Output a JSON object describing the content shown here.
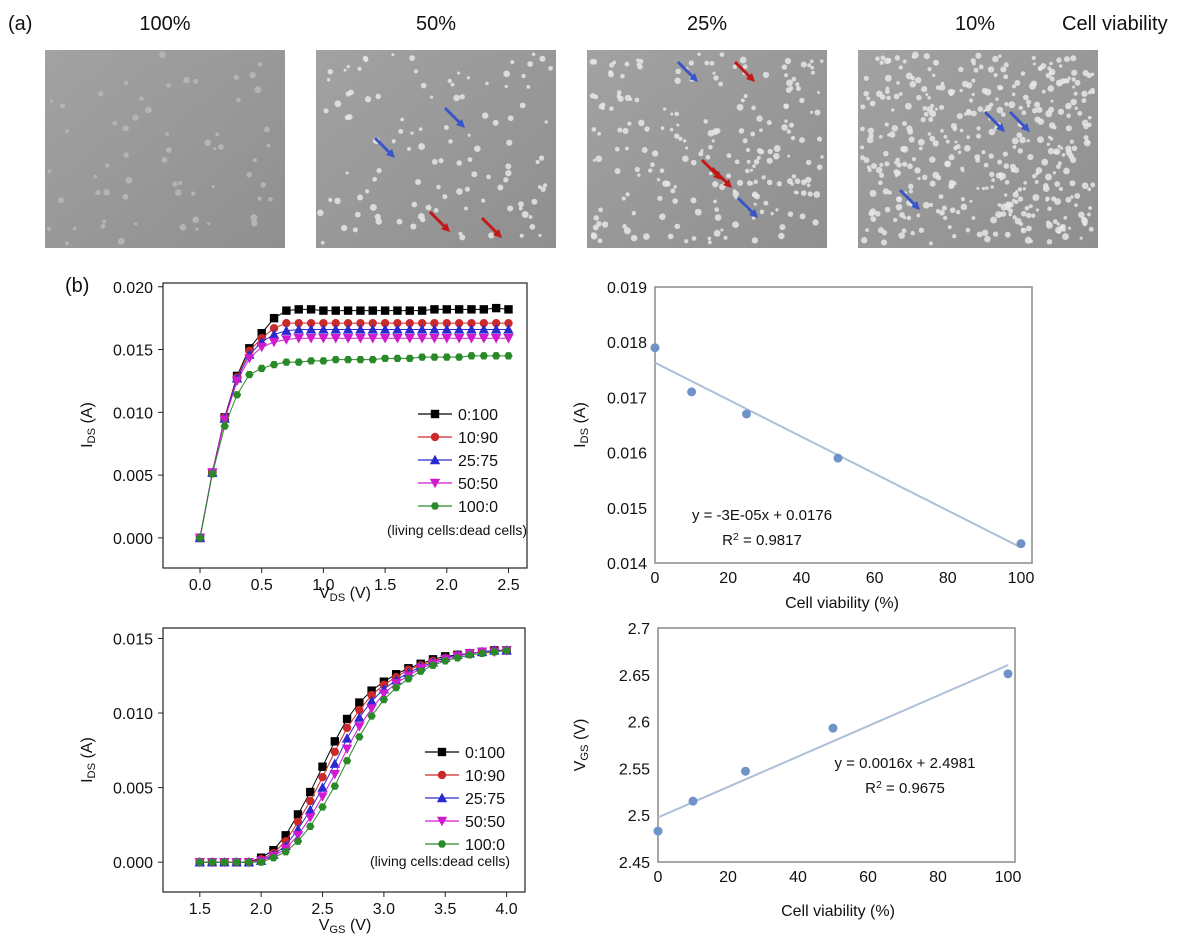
{
  "panel_a": {
    "label": "(a)",
    "viabilities": [
      "100%",
      "50%",
      "25%",
      "10%"
    ],
    "caption": "Cell viability"
  },
  "panel_b_label": "(b)",
  "chart_data": [
    {
      "type": "line",
      "xlabel": [
        "V",
        "DS",
        " (V)"
      ],
      "ylabel": [
        "I",
        "DS",
        " (A)"
      ],
      "x": [
        0,
        0.1,
        0.2,
        0.3,
        0.4,
        0.5,
        0.6,
        0.7,
        0.8,
        0.9,
        1.0,
        1.1,
        1.2,
        1.3,
        1.4,
        1.5,
        1.6,
        1.7,
        1.8,
        1.9,
        2.0,
        2.1,
        2.2,
        2.3,
        2.4,
        2.5
      ],
      "xlim": [
        -0.3,
        2.65
      ],
      "ylim": [
        -0.0024,
        0.0203
      ],
      "xticks": [
        {
          "value": 0,
          "label": "0.0"
        },
        0.5,
        {
          "value": 1,
          "label": "1.0"
        },
        1.5,
        {
          "value": 2,
          "label": "2.0"
        },
        2.5
      ],
      "yticks": [
        {
          "value": 0,
          "label": "0.000"
        },
        0.005,
        {
          "value": 0.01,
          "label": "0.010"
        },
        0.015,
        {
          "value": 0.02,
          "label": "0.020"
        }
      ],
      "legend": "center right",
      "annotation": "(living cells:dead cells)",
      "series": [
        {
          "name": "0:100",
          "color": "#000000",
          "marker": "square",
          "values": [
            0,
            0.0052,
            0.0096,
            0.0129,
            0.0151,
            0.0163,
            0.0175,
            0.0181,
            0.0182,
            0.0182,
            0.0181,
            0.0181,
            0.0181,
            0.0181,
            0.0181,
            0.0181,
            0.0181,
            0.0181,
            0.0181,
            0.0182,
            0.0182,
            0.0182,
            0.0182,
            0.0182,
            0.0183,
            0.0182
          ]
        },
        {
          "name": "10:90",
          "color": "#cc2a2a",
          "marker": "circle",
          "values": [
            0,
            0.0052,
            0.0096,
            0.0128,
            0.0149,
            0.0159,
            0.0167,
            0.0171,
            0.0171,
            0.0171,
            0.0171,
            0.0171,
            0.0171,
            0.0171,
            0.0171,
            0.0171,
            0.0171,
            0.0171,
            0.0171,
            0.0171,
            0.0171,
            0.0171,
            0.0171,
            0.0171,
            0.0171,
            0.0171
          ]
        },
        {
          "name": "25:75",
          "color": "#2a2ad0",
          "marker": "triangle-up",
          "values": [
            0,
            0.0052,
            0.0095,
            0.0127,
            0.0146,
            0.0156,
            0.0162,
            0.0165,
            0.0166,
            0.0166,
            0.0166,
            0.0166,
            0.0166,
            0.0166,
            0.0166,
            0.0166,
            0.0166,
            0.0166,
            0.0166,
            0.0166,
            0.0166,
            0.0166,
            0.0166,
            0.0166,
            0.0166,
            0.0166
          ]
        },
        {
          "name": "50:50",
          "color": "#d01ad0",
          "marker": "triangle-down",
          "values": [
            0,
            0.0052,
            0.0094,
            0.0125,
            0.0143,
            0.0152,
            0.0156,
            0.0158,
            0.0159,
            0.0159,
            0.0159,
            0.0159,
            0.0159,
            0.0159,
            0.0159,
            0.0159,
            0.0159,
            0.0159,
            0.0159,
            0.0159,
            0.0159,
            0.0159,
            0.0159,
            0.0159,
            0.0159,
            0.0159
          ]
        },
        {
          "name": "100:0",
          "color": "#2a8a2a",
          "marker": "hexagon",
          "values": [
            0,
            0.0051,
            0.0089,
            0.0114,
            0.013,
            0.0135,
            0.0138,
            0.014,
            0.014,
            0.0141,
            0.0141,
            0.0142,
            0.0142,
            0.0142,
            0.0142,
            0.0143,
            0.0143,
            0.0143,
            0.0144,
            0.0144,
            0.0144,
            0.0144,
            0.0145,
            0.0145,
            0.0145,
            0.0145
          ]
        }
      ]
    },
    {
      "type": "scatter",
      "xlabel": [
        "Cell viability (%)"
      ],
      "ylabel": [
        "I",
        "DS",
        " (A)"
      ],
      "x": [
        0,
        10,
        25,
        50,
        100
      ],
      "xlim": [
        0,
        103
      ],
      "ylim": [
        0.014,
        0.019
      ],
      "xticks": [
        0,
        20,
        40,
        60,
        80,
        100
      ],
      "yticks": [
        0.014,
        0.015,
        0.016,
        0.017,
        0.018,
        0.019
      ],
      "trendline": true,
      "annotations": [
        [
          "y = -3E-05x + 0.0176"
        ],
        [
          "R",
          "2",
          " = 0.9817"
        ]
      ],
      "series": [
        {
          "color": "#6f93c8",
          "values": [
            0.0179,
            0.0171,
            0.0167,
            0.0159,
            0.01435
          ]
        }
      ]
    },
    {
      "type": "line",
      "xlabel": [
        "V",
        "GS",
        " (V)"
      ],
      "ylabel": [
        "I",
        "DS",
        " (A)"
      ],
      "x": [
        1.5,
        1.6,
        1.7,
        1.8,
        1.9,
        2.0,
        2.1,
        2.2,
        2.3,
        2.4,
        2.5,
        2.6,
        2.7,
        2.8,
        2.9,
        3.0,
        3.1,
        3.2,
        3.3,
        3.4,
        3.5,
        3.6,
        3.7,
        3.8,
        3.9,
        4.0
      ],
      "xlim": [
        1.2,
        4.15
      ],
      "ylim": [
        -0.002,
        0.0157
      ],
      "xticks": [
        1.5,
        {
          "value": 2,
          "label": "2.0"
        },
        2.5,
        {
          "value": 3,
          "label": "3.0"
        },
        3.5,
        {
          "value": 4,
          "label": "4.0"
        }
      ],
      "yticks": [
        {
          "value": 0,
          "label": "0.000"
        },
        0.005,
        {
          "value": 0.01,
          "label": "0.010"
        },
        0.015
      ],
      "legend": "lower right",
      "annotation": "(living cells:dead cells)",
      "series": [
        {
          "name": "0:100",
          "color": "#000000",
          "marker": "square",
          "values": [
            0,
            0,
            0,
            0,
            0,
            0.0003,
            0.0008,
            0.0018,
            0.0032,
            0.0047,
            0.0064,
            0.0081,
            0.0096,
            0.0107,
            0.0115,
            0.0121,
            0.0126,
            0.013,
            0.0133,
            0.0136,
            0.0138,
            0.0139,
            0.014,
            0.0141,
            0.0142,
            0.0142
          ]
        },
        {
          "name": "10:90",
          "color": "#cc2a2a",
          "marker": "circle",
          "values": [
            0,
            0,
            0,
            0,
            0,
            0.0002,
            0.0006,
            0.0014,
            0.0027,
            0.0041,
            0.0057,
            0.0074,
            0.009,
            0.0102,
            0.0112,
            0.0119,
            0.0124,
            0.0129,
            0.0132,
            0.0135,
            0.0137,
            0.0139,
            0.014,
            0.0141,
            0.0142,
            0.0142
          ]
        },
        {
          "name": "25:75",
          "color": "#2a2ad0",
          "marker": "triangle-up",
          "values": [
            0,
            0,
            0,
            0,
            0,
            0.0001,
            0.0005,
            0.0011,
            0.0022,
            0.0035,
            0.005,
            0.0066,
            0.0083,
            0.0097,
            0.0108,
            0.0116,
            0.0122,
            0.0127,
            0.0131,
            0.0134,
            0.0137,
            0.0139,
            0.014,
            0.0141,
            0.0142,
            0.0142
          ]
        },
        {
          "name": "50:50",
          "color": "#d01ad0",
          "marker": "triangle-down",
          "values": [
            0,
            0,
            0,
            0,
            0,
            0.0001,
            0.0004,
            0.0009,
            0.0018,
            0.003,
            0.0044,
            0.0059,
            0.0076,
            0.0091,
            0.0103,
            0.0113,
            0.012,
            0.0125,
            0.013,
            0.0133,
            0.0136,
            0.0138,
            0.014,
            0.0141,
            0.0141,
            0.0142
          ]
        },
        {
          "name": "100:0",
          "color": "#2a8a2a",
          "marker": "hexagon",
          "values": [
            0,
            0,
            0,
            0,
            0,
            0,
            0.0003,
            0.0007,
            0.0014,
            0.0024,
            0.0037,
            0.0051,
            0.0068,
            0.0084,
            0.0098,
            0.0109,
            0.0117,
            0.0123,
            0.0128,
            0.0132,
            0.0135,
            0.0137,
            0.0139,
            0.014,
            0.0141,
            0.0142
          ]
        }
      ]
    },
    {
      "type": "scatter",
      "xlabel": [
        "Cell viability (%)"
      ],
      "ylabel": [
        "V",
        "GS",
        " (V)"
      ],
      "x": [
        0,
        10,
        25,
        50,
        100
      ],
      "xlim": [
        0,
        102
      ],
      "ylim": [
        2.45,
        2.7
      ],
      "xticks": [
        0,
        20,
        40,
        60,
        80,
        100
      ],
      "yticks": [
        2.45,
        2.5,
        2.55,
        2.6,
        2.65,
        2.7
      ],
      "trendline": true,
      "annotations": [
        [
          "y = 0.0016x + 2.4981"
        ],
        [
          "R",
          "2",
          " = 0.9675"
        ]
      ],
      "series": [
        {
          "color": "#6f93c8",
          "values": [
            2.483,
            2.515,
            2.547,
            2.593,
            2.651
          ]
        }
      ]
    }
  ]
}
